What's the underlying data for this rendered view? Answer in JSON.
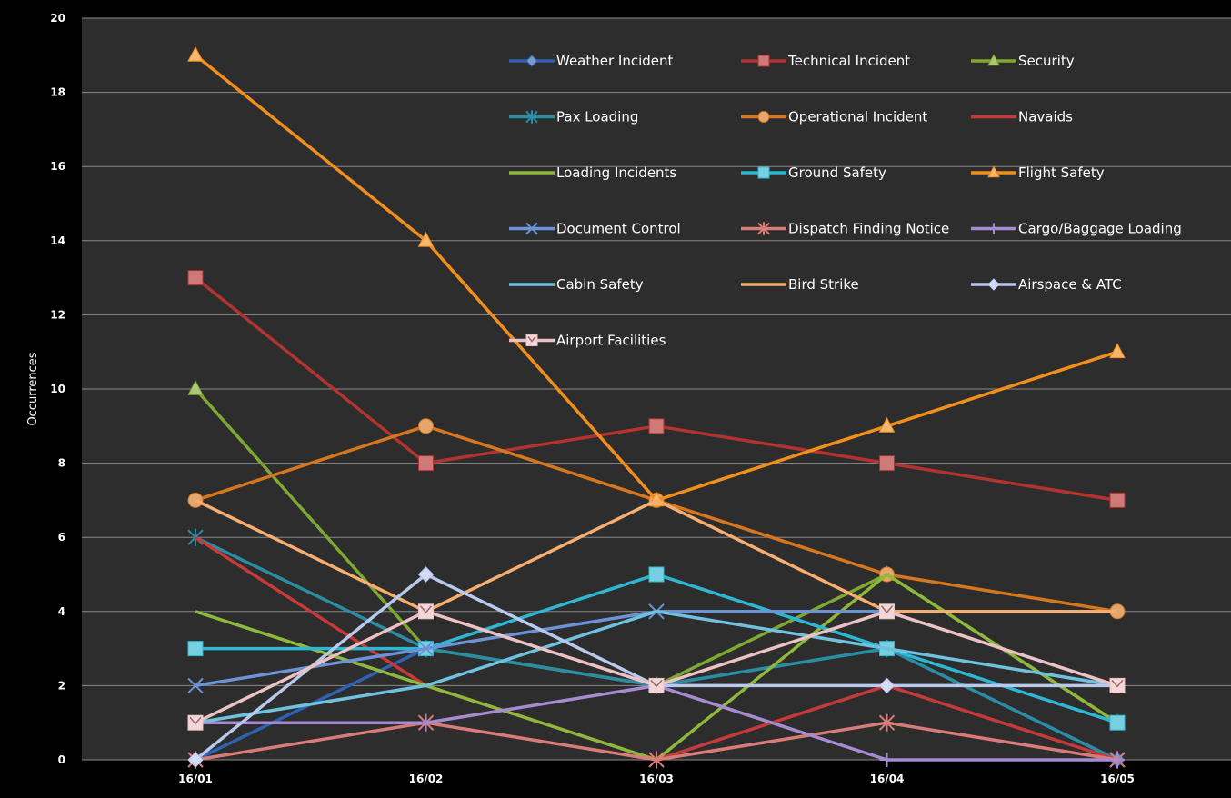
{
  "chart_data": {
    "type": "line",
    "title": "",
    "xlabel": "",
    "ylabel": "Occurrences",
    "categories": [
      "16/01",
      "16/02",
      "16/03",
      "16/04",
      "16/05"
    ],
    "ylim": [
      0,
      20
    ],
    "yticks": [
      0,
      2,
      4,
      6,
      8,
      10,
      12,
      14,
      16,
      18,
      20
    ],
    "grid": true,
    "legend_position": "top-right inside plot",
    "series": [
      {
        "name": "Weather Incident",
        "color": "#2f63b2",
        "marker": "diamond",
        "values": [
          0,
          3,
          2,
          3,
          0
        ]
      },
      {
        "name": "Technical Incident",
        "color": "#b23330",
        "marker": "square",
        "values": [
          13,
          8,
          9,
          8,
          7
        ]
      },
      {
        "name": "Security",
        "color": "#7fa832",
        "marker": "triangle",
        "values": [
          10,
          3,
          2,
          5,
          1
        ]
      },
      {
        "name": "Pax Loading",
        "color": "#2a8da3",
        "marker": "star",
        "values": [
          6,
          3,
          2,
          3,
          0
        ]
      },
      {
        "name": "Operational Incident",
        "color": "#d6761e",
        "marker": "circle",
        "values": [
          7,
          9,
          7,
          5,
          4
        ]
      },
      {
        "name": "Navaids",
        "color": "#c83a3a",
        "marker": "none",
        "values": [
          6,
          2,
          0,
          2,
          0
        ]
      },
      {
        "name": "Loading Incidents",
        "color": "#8db83b",
        "marker": "none",
        "values": [
          4,
          2,
          0,
          5,
          1
        ]
      },
      {
        "name": "Ground Safety",
        "color": "#2db7d2",
        "marker": "square",
        "values": [
          3,
          3,
          5,
          3,
          1
        ]
      },
      {
        "name": "Flight Safety",
        "color": "#f28e1c",
        "marker": "triangle",
        "values": [
          19,
          14,
          7,
          9,
          11
        ]
      },
      {
        "name": "Document Control",
        "color": "#6c93d6",
        "marker": "x",
        "values": [
          2,
          3,
          4,
          4,
          2
        ]
      },
      {
        "name": "Dispatch Finding Notice",
        "color": "#d97b78",
        "marker": "star",
        "values": [
          0,
          1,
          0,
          1,
          0
        ]
      },
      {
        "name": "Cargo/Baggage Loading",
        "color": "#a68bd0",
        "marker": "plus",
        "values": [
          1,
          1,
          2,
          0,
          0
        ]
      },
      {
        "name": "Cabin Safety",
        "color": "#6fc2dd",
        "marker": "none",
        "values": [
          1,
          2,
          4,
          3,
          2
        ]
      },
      {
        "name": "Bird Strike",
        "color": "#f6ad70",
        "marker": "none",
        "values": [
          7,
          4,
          7,
          4,
          4
        ]
      },
      {
        "name": "Airspace & ATC",
        "color": "#b9c9ee",
        "marker": "diamond",
        "values": [
          0,
          5,
          2,
          2,
          2
        ]
      },
      {
        "name": "Airport Facilities",
        "color": "#ecc1c3",
        "marker": "square-x",
        "values": [
          1,
          4,
          2,
          4,
          2
        ]
      }
    ]
  }
}
